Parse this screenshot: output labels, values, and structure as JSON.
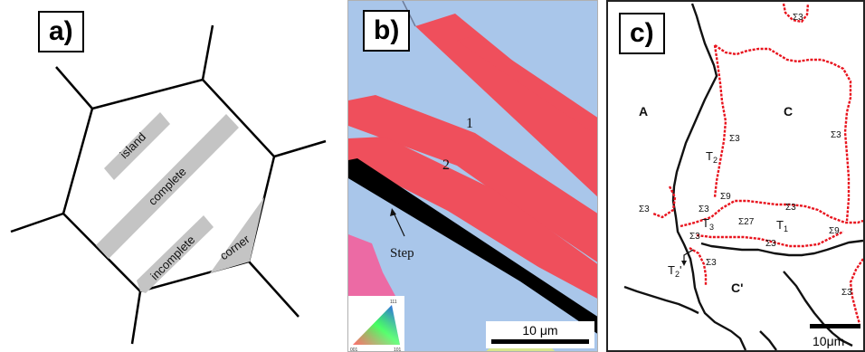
{
  "panels": {
    "a": {
      "tag": "a)",
      "labels": {
        "island": "island",
        "complete": "complete",
        "incomplete": "incomplete",
        "corner": "corner"
      }
    },
    "b": {
      "tag": "b)",
      "twin_1": "1",
      "twin_2": "2",
      "step": "Step",
      "scale_bar": "10 μm",
      "legend_ticks": {
        "top": "111",
        "left": "001",
        "right": "101"
      }
    },
    "c": {
      "tag": "c)",
      "grains": {
        "A": "A",
        "C": "C",
        "T2": "T",
        "T2_sub": "2",
        "T3": "T",
        "T3_sub": "3",
        "T1": "T",
        "T1_sub": "1",
        "T2p": "T",
        "T2p_sub": "2",
        "T2p_prime": "'",
        "Cp": "C'"
      },
      "sigma3": "Σ3",
      "sigma9": "Σ9",
      "sigma27": "Σ27",
      "scale_bar": "10μm"
    }
  },
  "colors": {
    "twin_red": "#ef4f5c",
    "matrix_blue": "#a9c6ea",
    "sigma3_boundary": "#e8141e",
    "island_grey": "#c4c4c4"
  }
}
